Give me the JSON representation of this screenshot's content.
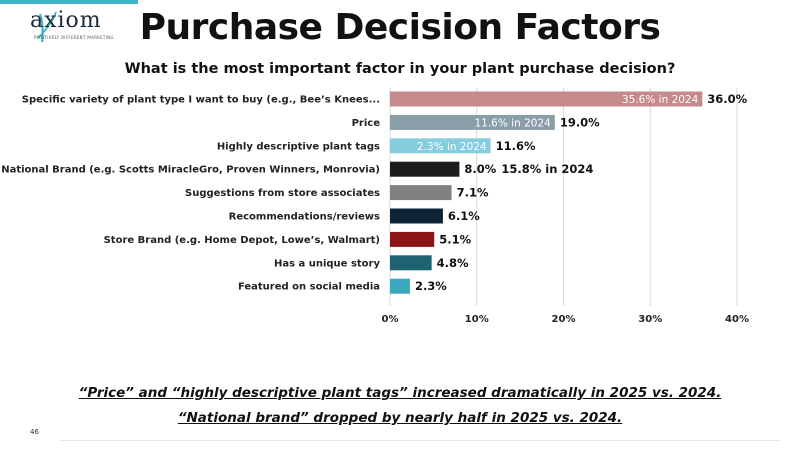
{
  "brand": {
    "logo_text": "axiom",
    "logo_tagline": "POSITIVELY DIFFERENT MARKETING"
  },
  "slide": {
    "title": "Purchase Decision Factors",
    "footnote_1": "“Price” and “highly descriptive plant tags” increased dramatically in 2025 vs. 2024.",
    "footnote_2": "“National brand” dropped by nearly half in 2025 vs. 2024.",
    "page_number": "46"
  },
  "colors": {
    "accent_rule": "#3bb3c8",
    "gridline": "#d9d9d9"
  },
  "chart_data": {
    "type": "bar",
    "orientation": "horizontal",
    "title": "What is the most important factor in your plant purchase decision?",
    "xlabel": "",
    "ylabel": "",
    "xlim": [
      0,
      40
    ],
    "ticks": [
      0,
      10,
      20,
      30,
      40
    ],
    "tick_labels": [
      "0%",
      "10%",
      "20%",
      "30%",
      "40%"
    ],
    "grid": true,
    "categories": [
      "Specific variety of plant type I want to buy (e.g., Bee’s Knees...",
      "Price",
      "Highly descriptive plant tags",
      "National Brand (e.g. Scotts MiracleGro, Proven Winners, Monrovia)",
      "Suggestions from store associates",
      "Recommendations/reviews",
      "Store Brand (e.g. Home Depot, Lowe’s, Walmart)",
      "Has a unique story",
      "Featured on social media"
    ],
    "values": [
      36.0,
      19.0,
      11.6,
      8.0,
      7.1,
      6.1,
      5.1,
      4.8,
      2.3
    ],
    "value_labels": [
      "36.0%",
      "19.0%",
      "11.6%",
      "8.0%",
      "7.1%",
      "6.1%",
      "5.1%",
      "4.8%",
      "2.3%"
    ],
    "bar_colors": [
      "#c48a8c",
      "#8a9ea9",
      "#86cde0",
      "#1c1c1c",
      "#808282",
      "#0f2537",
      "#8b1414",
      "#1f6272",
      "#3aa8bf"
    ],
    "annotations_2024": [
      {
        "index": 0,
        "text": "35.6% in 2024",
        "placement": "inside"
      },
      {
        "index": 1,
        "text": "11.6% in 2024",
        "placement": "inside"
      },
      {
        "index": 2,
        "text": "2.3% in 2024",
        "placement": "inside"
      },
      {
        "index": 3,
        "text": "15.8% in 2024",
        "placement": "outside"
      }
    ]
  }
}
